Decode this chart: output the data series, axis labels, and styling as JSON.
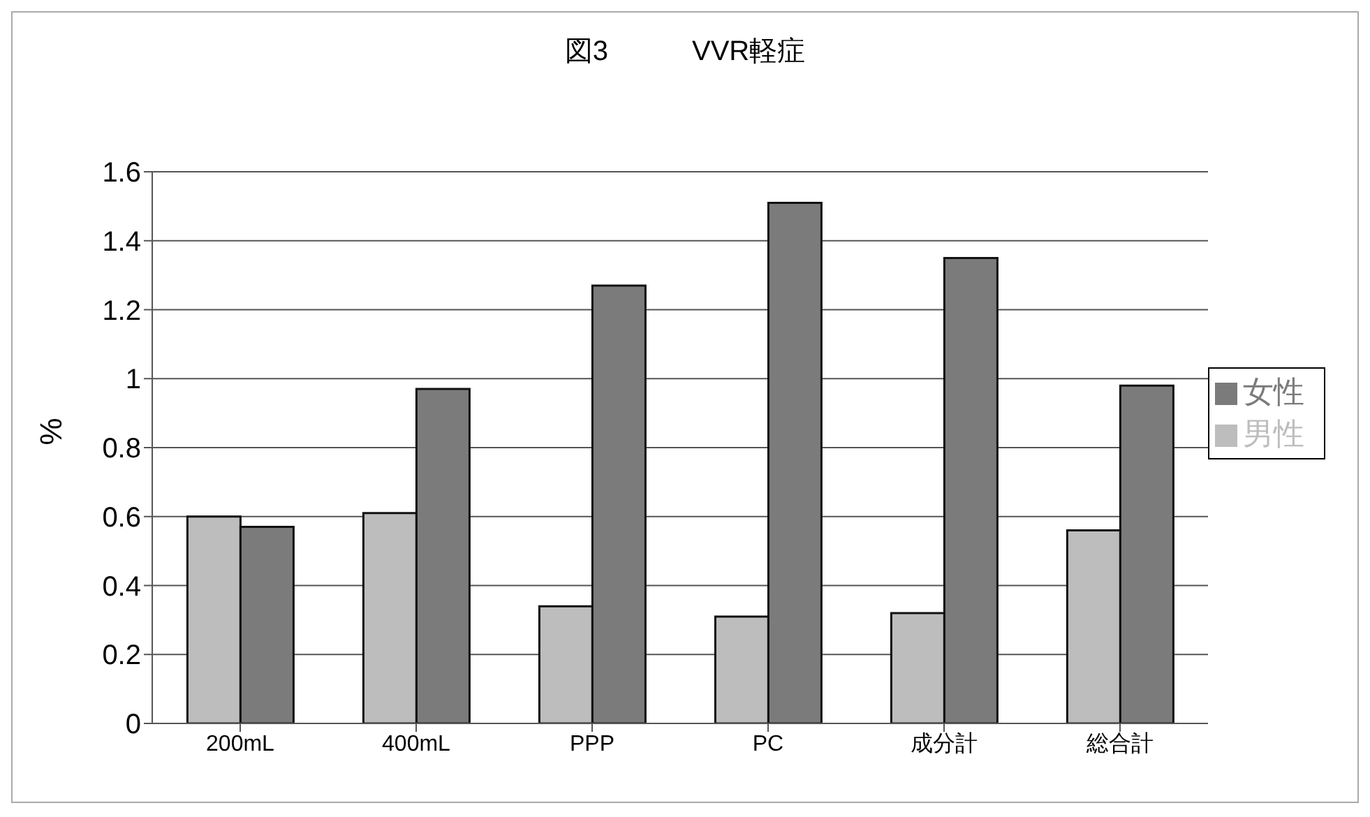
{
  "chart_data": {
    "type": "bar",
    "title": "図3　　　VVR軽症",
    "ylabel": "%",
    "categories": [
      "200mL",
      "400mL",
      "PPP",
      "PC",
      "成分計",
      "総合計"
    ],
    "series": [
      {
        "name": "男性",
        "color": "#bdbdbd",
        "values": [
          0.6,
          0.61,
          0.34,
          0.31,
          0.32,
          0.56
        ]
      },
      {
        "name": "女性",
        "color": "#7b7b7b",
        "values": [
          0.57,
          0.97,
          1.27,
          1.51,
          1.35,
          0.98
        ]
      }
    ],
    "ylim": [
      0,
      1.6
    ],
    "yticks": [
      0,
      0.2,
      0.4,
      0.6,
      0.8,
      1,
      1.2,
      1.4,
      1.6
    ],
    "grid": "y",
    "legend": "right"
  }
}
